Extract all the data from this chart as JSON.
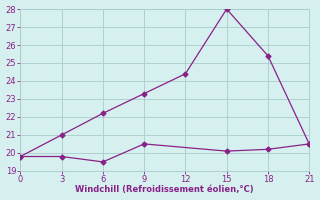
{
  "xlabel": "Windchill (Refroidissement éolien,°C)",
  "x_line1": [
    0,
    3,
    6,
    9,
    12,
    15,
    18,
    21
  ],
  "y_line1": [
    19.8,
    21.0,
    22.2,
    23.3,
    24.4,
    28.0,
    25.4,
    20.5
  ],
  "x_line2": [
    0,
    3,
    6,
    9,
    15,
    18,
    21
  ],
  "y_line2": [
    19.8,
    19.8,
    19.5,
    20.5,
    20.1,
    20.2,
    20.5
  ],
  "line_color": "#882288",
  "marker": "D",
  "marker_size": 2.5,
  "bg_color": "#d6f0f0",
  "grid_color": "#aacccc",
  "tick_color": "#882288",
  "label_color": "#882288",
  "xlim": [
    0,
    21
  ],
  "ylim": [
    19,
    28
  ],
  "xticks": [
    0,
    3,
    6,
    9,
    12,
    15,
    18,
    21
  ],
  "yticks": [
    19,
    20,
    21,
    22,
    23,
    24,
    25,
    26,
    27,
    28
  ]
}
